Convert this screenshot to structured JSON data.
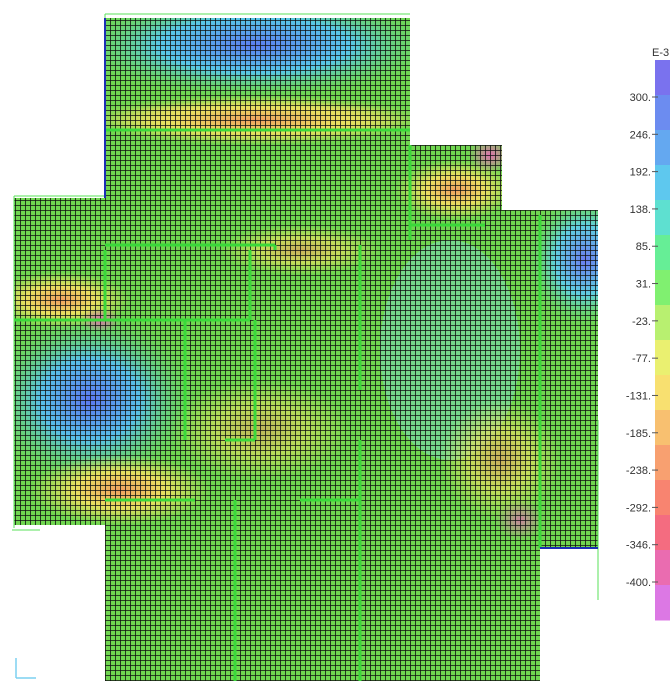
{
  "legend": {
    "unit": "E-3",
    "labels": [
      "300.",
      "246.",
      "192.",
      "138.",
      "85.",
      "31.",
      "-23.",
      "-77.",
      "-131.",
      "-185.",
      "-238.",
      "-292.",
      "-346.",
      "-400."
    ]
  }
}
